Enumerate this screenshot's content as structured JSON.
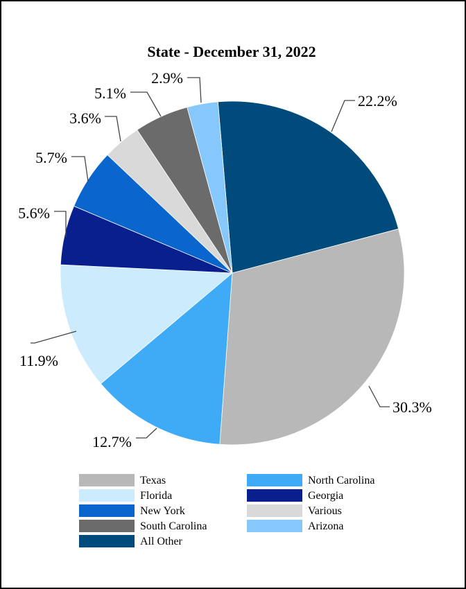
{
  "chart_data": {
    "type": "pie",
    "title": "State - December 31, 2022",
    "slices": [
      {
        "label": "All Other",
        "value": 22.2,
        "display": "22.2%",
        "color": "#004a7c"
      },
      {
        "label": "Texas",
        "value": 30.3,
        "display": "30.3%",
        "color": "#b8b8b8"
      },
      {
        "label": "North Carolina",
        "value": 12.7,
        "display": "12.7%",
        "color": "#3fabf7"
      },
      {
        "label": "Florida",
        "value": 11.9,
        "display": "11.9%",
        "color": "#ccebfc"
      },
      {
        "label": "Georgia",
        "value": 5.6,
        "display": "5.6%",
        "color": "#0a1f8e"
      },
      {
        "label": "New York",
        "value": 5.7,
        "display": "5.7%",
        "color": "#0a66cc"
      },
      {
        "label": "Various",
        "value": 3.6,
        "display": "3.6%",
        "color": "#d9d9d9"
      },
      {
        "label": "South Carolina",
        "value": 5.1,
        "display": "5.1%",
        "color": "#6b6b6b"
      },
      {
        "label": "Arizona",
        "value": 2.9,
        "display": "2.9%",
        "color": "#86c8fb"
      }
    ],
    "legend": {
      "placement": "bottom",
      "order": [
        "Texas",
        "North Carolina",
        "Florida",
        "Georgia",
        "New York",
        "Various",
        "South Carolina",
        "Arizona",
        "All Other"
      ]
    }
  }
}
